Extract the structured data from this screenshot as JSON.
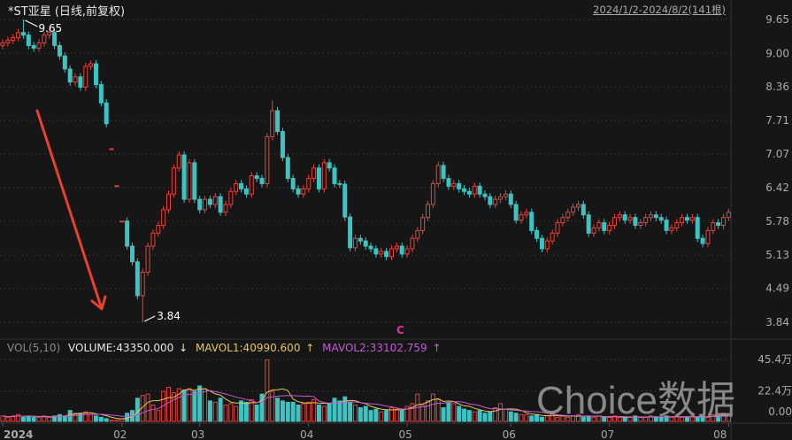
{
  "header": {
    "title": "*ST亚星 (日线,前复权)",
    "range": "2024/1/2-2024/8/2(141根)"
  },
  "volume_legend": {
    "name": "VOL(5,10)",
    "volume": "VOLUME:43350.000",
    "volume_arrow": "↓",
    "mavol1": "MAVOL1:40990.600",
    "mavol1_arrow": "↑",
    "mavol2": "MAVOL2:33102.759",
    "mavol2_arrow": "↑"
  },
  "event_marker": "C",
  "watermark": "Choice数据",
  "colors": {
    "background": "#161616",
    "up": "#e8413c",
    "down": "#3cc4c4",
    "mavol1": "#e3c65a",
    "mavol2": "#c65ad6",
    "annotation_arrow": "#e8412f",
    "grid": "#4a4a4a"
  },
  "chart_data": {
    "type": "candlestick",
    "title": "*ST亚星 (日线,前复权)",
    "price_axis": {
      "ticks": [
        "9.65",
        "9.00",
        "8.36",
        "7.71",
        "7.07",
        "6.42",
        "5.78",
        "5.13",
        "4.49",
        "3.84"
      ],
      "range": [
        3.84,
        9.65
      ]
    },
    "volume_axis": {
      "ticks": [
        "45.4万",
        "22.4万",
        "0.00"
      ],
      "values": [
        45.4,
        22.4,
        0
      ],
      "unit": "万"
    },
    "x_labels": [
      {
        "label": "2024",
        "index": 0
      },
      {
        "label": "02",
        "index": 23
      },
      {
        "label": "03",
        "index": 38
      },
      {
        "label": "04",
        "index": 59
      },
      {
        "label": "05",
        "index": 78
      },
      {
        "label": "06",
        "index": 98
      },
      {
        "label": "07",
        "index": 117
      },
      {
        "label": "08",
        "index": 140
      }
    ],
    "marked_high": {
      "index": 4,
      "value": 9.65,
      "label": "9.65"
    },
    "marked_low": {
      "index": 27,
      "value": 3.84,
      "label": "3.84"
    },
    "first_open": 9.15,
    "flat_days": [
      21,
      22,
      23
    ],
    "close": [
      9.2,
      9.25,
      9.3,
      9.4,
      9.35,
      9.15,
      9.1,
      9.2,
      9.35,
      9.4,
      9.15,
      8.95,
      8.7,
      8.45,
      8.55,
      8.35,
      8.75,
      8.8,
      8.4,
      8.05,
      7.65,
      7.17,
      6.46,
      5.78,
      5.3,
      5.0,
      4.35,
      4.8,
      5.3,
      5.55,
      5.7,
      6.0,
      6.3,
      6.8,
      7.05,
      6.2,
      6.9,
      6.2,
      6.0,
      6.2,
      6.1,
      6.25,
      5.95,
      6.1,
      6.35,
      6.5,
      6.4,
      6.3,
      6.65,
      6.6,
      6.5,
      7.4,
      7.9,
      7.5,
      7.0,
      6.6,
      6.4,
      6.3,
      6.4,
      6.6,
      6.8,
      6.4,
      6.9,
      6.8,
      6.5,
      6.49,
      5.86,
      5.27,
      5.45,
      5.4,
      5.3,
      5.25,
      5.15,
      5.2,
      5.1,
      5.25,
      5.3,
      5.15,
      5.25,
      5.45,
      5.6,
      5.85,
      6.1,
      6.5,
      6.85,
      6.6,
      6.45,
      6.5,
      6.4,
      6.35,
      6.3,
      6.45,
      6.3,
      6.25,
      6.1,
      6.2,
      6.25,
      6.3,
      6.1,
      5.8,
      5.9,
      5.95,
      5.6,
      5.45,
      5.25,
      5.4,
      5.55,
      5.75,
      5.85,
      5.95,
      6.05,
      6.1,
      5.9,
      5.55,
      5.65,
      5.75,
      5.6,
      5.7,
      5.85,
      5.9,
      5.8,
      5.85,
      5.7,
      5.75,
      5.85,
      5.9,
      5.85,
      5.8,
      5.6,
      5.65,
      5.75,
      5.85,
      5.8,
      5.85,
      5.45,
      5.35,
      5.6,
      5.75,
      5.7,
      5.85,
      5.95
    ],
    "volume": [
      4,
      3,
      4,
      5,
      3,
      4,
      3,
      3,
      4,
      3,
      4,
      5,
      4,
      8,
      6,
      6,
      7,
      5,
      4,
      3,
      2,
      1,
      1,
      2,
      6,
      8,
      17,
      19,
      20,
      12,
      8,
      22,
      25,
      21,
      24,
      23,
      24,
      22,
      26,
      24,
      15,
      14,
      17,
      12,
      13,
      11,
      15,
      14,
      16,
      12,
      20,
      45,
      22,
      17,
      15,
      14,
      14,
      12,
      13,
      14,
      16,
      12,
      11,
      13,
      17,
      15,
      18,
      14,
      12,
      10,
      11,
      8,
      9,
      7,
      8,
      10,
      9,
      8,
      11,
      13,
      20,
      12,
      15,
      20,
      16,
      10,
      14,
      13,
      11,
      9,
      8,
      7,
      8,
      6,
      7,
      10,
      13,
      9,
      7,
      6,
      5,
      5,
      4,
      5,
      3,
      4,
      6,
      3,
      4,
      3,
      4,
      5,
      3,
      4,
      3,
      4,
      3,
      3,
      4,
      3,
      3,
      3,
      4,
      3,
      3,
      4,
      3,
      3,
      4,
      3,
      4,
      3,
      3,
      4,
      3,
      4,
      3,
      5,
      4,
      6,
      4
    ],
    "series": [
      {
        "name": "MAVOL1",
        "period": 5
      },
      {
        "name": "MAVOL2",
        "period": 10
      }
    ]
  }
}
